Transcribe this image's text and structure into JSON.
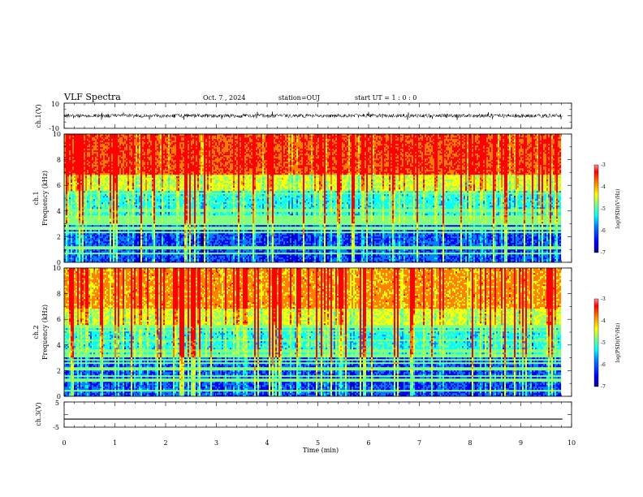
{
  "header": {
    "title": "VLF Spectra",
    "date": "Oct. 7 , 2024",
    "station": "station=OUJ",
    "start_ut": "start UT =  1 : 0  : 0"
  },
  "colors": {
    "colormap": [
      "#00008f",
      "#0000ff",
      "#0080ff",
      "#00ffff",
      "#80ff80",
      "#ffff00",
      "#ff8000",
      "#ff0000",
      "#800000"
    ]
  },
  "chart_data": [
    {
      "id": "ch1-waveform",
      "type": "line",
      "ylabel": "ch.1(V)",
      "ylim": [
        -10,
        10
      ],
      "yticks": [
        -10,
        10
      ],
      "xlim": [
        0,
        10
      ],
      "series": [
        {
          "baseline": 0,
          "noise_amplitude": 1.5,
          "spike_amplitude": 3.5,
          "x_end": 9.82
        }
      ]
    },
    {
      "id": "ch1-spectrogram",
      "type": "heatmap",
      "ylabel_top": "ch.1",
      "ylabel": "Frequency (kHz)",
      "ylim": [
        0,
        10
      ],
      "yticks": [
        0,
        2,
        4,
        6,
        8,
        10
      ],
      "xlim": [
        0,
        10
      ],
      "x_end": 9.82,
      "colorbar": {
        "label": "log(PSD)(V²/Hz)",
        "range": [
          -7,
          -3
        ],
        "ticks": [
          "-3",
          "-4",
          "-5",
          "-6",
          "-7"
        ]
      }
    },
    {
      "id": "ch2-spectrogram",
      "type": "heatmap",
      "ylabel_top": "ch.2",
      "ylabel": "Frequency (kHz)",
      "ylim": [
        0,
        10
      ],
      "yticks": [
        0,
        2,
        4,
        6,
        8,
        10
      ],
      "xlim": [
        0,
        10
      ],
      "x_end": 9.82,
      "colorbar": {
        "label": "log(PSD)(V²/Hz)",
        "range": [
          -7,
          -3
        ],
        "ticks": [
          "-3",
          "-4",
          "-5",
          "-6",
          "-7"
        ]
      }
    },
    {
      "id": "ch3-waveform",
      "type": "line",
      "ylabel": "ch.3(V)",
      "ylim": [
        -5,
        5
      ],
      "yticks": [
        -5,
        5
      ],
      "xlim": [
        0,
        10
      ],
      "xlabel": "Time (min)",
      "xticks": [
        0,
        1,
        2,
        3,
        4,
        5,
        6,
        7,
        8,
        9,
        10
      ],
      "series": [
        {
          "values": [
            -1.8,
            -1.8
          ],
          "x": [
            0,
            9.82
          ]
        }
      ]
    }
  ]
}
